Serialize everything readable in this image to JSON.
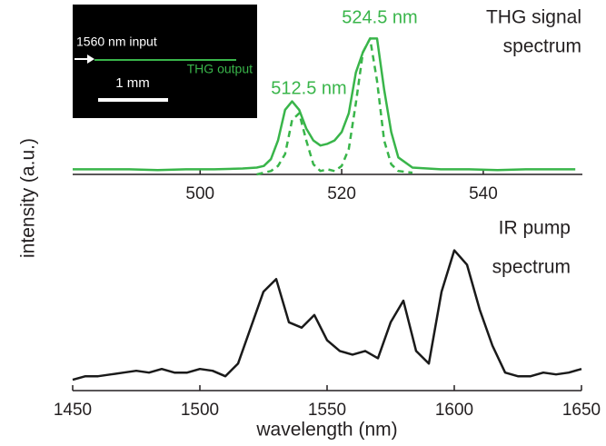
{
  "chart_data": [
    {
      "type": "line",
      "ylabel": "intensity (a.u.)",
      "annotations": [
        "THG signal",
        "spectrum",
        "524.5 nm",
        "512.5 nm",
        "1560 nm input",
        "THG output",
        "1 mm"
      ],
      "x": [
        482,
        486,
        490,
        494,
        498,
        502,
        506,
        508,
        509,
        510,
        511,
        512,
        513,
        514,
        515,
        516,
        517,
        518,
        519,
        520,
        521,
        522,
        523,
        524,
        525,
        526,
        527,
        528,
        530,
        534,
        538,
        542,
        546,
        550,
        553
      ],
      "series": [
        {
          "color": "#39b54a",
          "style": "solid",
          "values": [
            0.03,
            0.03,
            0.03,
            0.025,
            0.03,
            0.03,
            0.035,
            0.04,
            0.05,
            0.09,
            0.2,
            0.38,
            0.43,
            0.38,
            0.27,
            0.2,
            0.17,
            0.18,
            0.2,
            0.25,
            0.36,
            0.6,
            0.72,
            0.8,
            0.8,
            0.5,
            0.25,
            0.1,
            0.04,
            0.03,
            0.03,
            0.025,
            0.03,
            0.03,
            0.03
          ]
        },
        {
          "color": "#39b54a",
          "style": "dashed",
          "values": [
            null,
            null,
            null,
            null,
            null,
            null,
            null,
            0,
            0.01,
            0.02,
            0.05,
            0.12,
            0.32,
            0.36,
            0.2,
            0.06,
            0.02,
            0.03,
            0.02,
            0.05,
            0.15,
            0.42,
            0.72,
            0.8,
            0.55,
            0.2,
            0.06,
            0.02,
            0.01,
            null,
            null,
            null,
            null,
            null,
            null
          ]
        }
      ],
      "xlim": [
        482,
        554
      ],
      "ylim": [
        0,
        1
      ],
      "xticks": [
        500,
        520,
        540
      ]
    },
    {
      "type": "line",
      "xlabel": "wavelength (nm)",
      "annotations": [
        "IR pump",
        "spectrum"
      ],
      "x": [
        1450,
        1455,
        1460,
        1465,
        1470,
        1475,
        1480,
        1485,
        1490,
        1495,
        1500,
        1505,
        1510,
        1515,
        1520,
        1525,
        1530,
        1535,
        1540,
        1545,
        1550,
        1555,
        1560,
        1565,
        1570,
        1575,
        1580,
        1585,
        1590,
        1595,
        1600,
        1605,
        1610,
        1615,
        1620,
        1625,
        1630,
        1635,
        1640,
        1645,
        1650
      ],
      "series": [
        {
          "color": "#1a1a1a",
          "style": "solid",
          "values": [
            0.06,
            0.08,
            0.08,
            0.09,
            0.1,
            0.11,
            0.1,
            0.12,
            0.1,
            0.1,
            0.12,
            0.11,
            0.08,
            0.15,
            0.35,
            0.55,
            0.62,
            0.38,
            0.35,
            0.42,
            0.28,
            0.22,
            0.2,
            0.22,
            0.18,
            0.38,
            0.5,
            0.22,
            0.15,
            0.55,
            0.78,
            0.7,
            0.45,
            0.25,
            0.1,
            0.08,
            0.08,
            0.1,
            0.09,
            0.1,
            0.12
          ]
        }
      ],
      "xlim": [
        1450,
        1650
      ],
      "ylim": [
        0,
        1
      ],
      "xticks": [
        1450,
        1500,
        1550,
        1600,
        1650
      ]
    }
  ]
}
